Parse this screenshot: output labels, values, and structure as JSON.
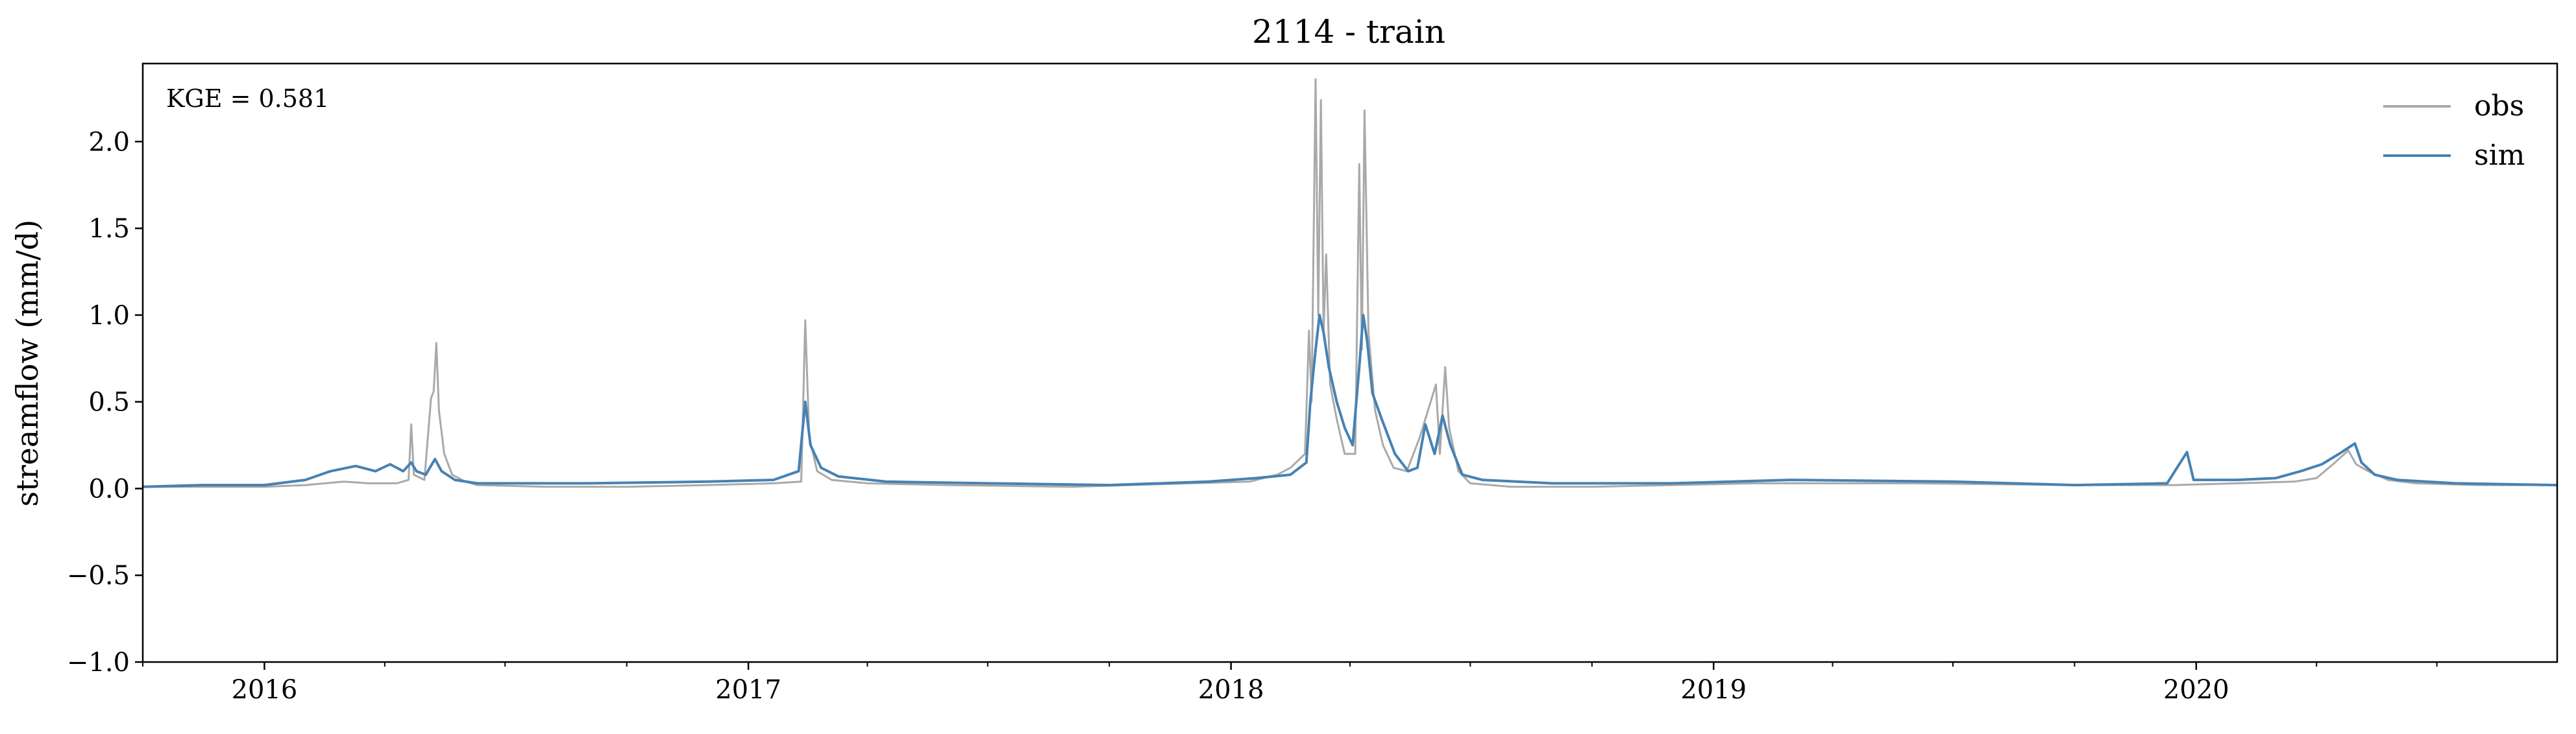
{
  "chart_data": {
    "type": "line",
    "title": "2114 - train",
    "xlabel": "",
    "ylabel": "streamflow (mm/d)",
    "annotation": "KGE = 0.581",
    "xlim": [
      "2015-10-01",
      "2020-09-30"
    ],
    "ylim": [
      -1.0,
      2.45
    ],
    "x_tick_labels": [
      "2016",
      "2017",
      "2018",
      "2019",
      "2020"
    ],
    "x_ticks": [
      "2016-01-01",
      "2017-01-01",
      "2018-01-01",
      "2019-01-01",
      "2020-01-01"
    ],
    "y_ticks": [
      -1.0,
      -0.5,
      0.0,
      0.5,
      1.0,
      1.5,
      2.0
    ],
    "y_tick_labels": [
      "−1.0",
      "−0.5",
      "0.0",
      "0.5",
      "1.0",
      "1.5",
      "2.0"
    ],
    "grid": false,
    "legend_position": "top-right",
    "colors": {
      "obs": "#a9a9a9",
      "sim": "#4682b4"
    },
    "series": [
      {
        "name": "obs",
        "points": [
          [
            "2015-10-01",
            0.01
          ],
          [
            "2015-11-15",
            0.01
          ],
          [
            "2016-01-01",
            0.01
          ],
          [
            "2016-02-01",
            0.02
          ],
          [
            "2016-03-01",
            0.04
          ],
          [
            "2016-03-20",
            0.03
          ],
          [
            "2016-04-10",
            0.03
          ],
          [
            "2016-04-19",
            0.05
          ],
          [
            "2016-04-21",
            0.37
          ],
          [
            "2016-04-23",
            0.08
          ],
          [
            "2016-05-01",
            0.05
          ],
          [
            "2016-05-06",
            0.52
          ],
          [
            "2016-05-08",
            0.56
          ],
          [
            "2016-05-10",
            0.84
          ],
          [
            "2016-05-12",
            0.45
          ],
          [
            "2016-05-16",
            0.2
          ],
          [
            "2016-05-22",
            0.08
          ],
          [
            "2016-06-01",
            0.04
          ],
          [
            "2016-06-10",
            0.02
          ],
          [
            "2016-08-01",
            0.01
          ],
          [
            "2016-10-01",
            0.01
          ],
          [
            "2016-12-01",
            0.02
          ],
          [
            "2017-01-20",
            0.03
          ],
          [
            "2017-02-10",
            0.04
          ],
          [
            "2017-02-13",
            0.97
          ],
          [
            "2017-02-16",
            0.3
          ],
          [
            "2017-02-22",
            0.1
          ],
          [
            "2017-03-05",
            0.05
          ],
          [
            "2017-04-01",
            0.03
          ],
          [
            "2017-06-01",
            0.02
          ],
          [
            "2017-09-01",
            0.01
          ],
          [
            "2017-12-01",
            0.03
          ],
          [
            "2018-01-15",
            0.04
          ],
          [
            "2018-02-05",
            0.08
          ],
          [
            "2018-02-15",
            0.12
          ],
          [
            "2018-02-26",
            0.2
          ],
          [
            "2018-03-01",
            0.91
          ],
          [
            "2018-03-03",
            0.5
          ],
          [
            "2018-03-06",
            2.36
          ],
          [
            "2018-03-08",
            1.0
          ],
          [
            "2018-03-10",
            2.24
          ],
          [
            "2018-03-12",
            0.9
          ],
          [
            "2018-03-14",
            1.35
          ],
          [
            "2018-03-17",
            0.6
          ],
          [
            "2018-03-22",
            0.4
          ],
          [
            "2018-03-28",
            0.2
          ],
          [
            "2018-04-05",
            0.2
          ],
          [
            "2018-04-08",
            1.87
          ],
          [
            "2018-04-10",
            0.8
          ],
          [
            "2018-04-12",
            2.18
          ],
          [
            "2018-04-15",
            0.9
          ],
          [
            "2018-04-20",
            0.45
          ],
          [
            "2018-04-26",
            0.25
          ],
          [
            "2018-05-04",
            0.12
          ],
          [
            "2018-05-14",
            0.1
          ],
          [
            "2018-05-24",
            0.3
          ],
          [
            "2018-06-05",
            0.6
          ],
          [
            "2018-06-08",
            0.2
          ],
          [
            "2018-06-12",
            0.7
          ],
          [
            "2018-06-15",
            0.35
          ],
          [
            "2018-06-22",
            0.1
          ],
          [
            "2018-07-01",
            0.03
          ],
          [
            "2018-08-01",
            0.01
          ],
          [
            "2018-10-01",
            0.01
          ],
          [
            "2019-02-01",
            0.03
          ],
          [
            "2019-06-01",
            0.03
          ],
          [
            "2019-10-01",
            0.02
          ],
          [
            "2019-12-15",
            0.02
          ],
          [
            "2020-02-01",
            0.03
          ],
          [
            "2020-03-15",
            0.04
          ],
          [
            "2020-04-01",
            0.06
          ],
          [
            "2020-04-15",
            0.15
          ],
          [
            "2020-04-25",
            0.22
          ],
          [
            "2020-05-01",
            0.14
          ],
          [
            "2020-05-10",
            0.1
          ],
          [
            "2020-05-25",
            0.05
          ],
          [
            "2020-06-15",
            0.03
          ],
          [
            "2020-08-01",
            0.02
          ],
          [
            "2020-09-30",
            0.02
          ]
        ]
      },
      {
        "name": "sim",
        "points": [
          [
            "2015-10-01",
            0.01
          ],
          [
            "2015-11-15",
            0.02
          ],
          [
            "2016-01-01",
            0.02
          ],
          [
            "2016-02-01",
            0.05
          ],
          [
            "2016-02-20",
            0.1
          ],
          [
            "2016-03-10",
            0.13
          ],
          [
            "2016-03-25",
            0.1
          ],
          [
            "2016-04-05",
            0.14
          ],
          [
            "2016-04-15",
            0.1
          ],
          [
            "2016-04-21",
            0.15
          ],
          [
            "2016-04-25",
            0.1
          ],
          [
            "2016-05-02",
            0.08
          ],
          [
            "2016-05-09",
            0.17
          ],
          [
            "2016-05-14",
            0.1
          ],
          [
            "2016-05-24",
            0.05
          ],
          [
            "2016-06-10",
            0.03
          ],
          [
            "2016-09-01",
            0.03
          ],
          [
            "2016-12-01",
            0.04
          ],
          [
            "2017-01-20",
            0.05
          ],
          [
            "2017-02-08",
            0.1
          ],
          [
            "2017-02-13",
            0.5
          ],
          [
            "2017-02-17",
            0.25
          ],
          [
            "2017-02-25",
            0.12
          ],
          [
            "2017-03-10",
            0.07
          ],
          [
            "2017-04-15",
            0.04
          ],
          [
            "2017-07-01",
            0.03
          ],
          [
            "2017-10-01",
            0.02
          ],
          [
            "2017-12-15",
            0.04
          ],
          [
            "2018-01-20",
            0.06
          ],
          [
            "2018-02-15",
            0.08
          ],
          [
            "2018-02-27",
            0.15
          ],
          [
            "2018-03-02",
            0.5
          ],
          [
            "2018-03-06",
            0.8
          ],
          [
            "2018-03-09",
            1.0
          ],
          [
            "2018-03-12",
            0.9
          ],
          [
            "2018-03-16",
            0.7
          ],
          [
            "2018-03-22",
            0.5
          ],
          [
            "2018-03-28",
            0.35
          ],
          [
            "2018-04-03",
            0.25
          ],
          [
            "2018-04-08",
            0.7
          ],
          [
            "2018-04-11",
            1.0
          ],
          [
            "2018-04-14",
            0.85
          ],
          [
            "2018-04-18",
            0.55
          ],
          [
            "2018-04-25",
            0.4
          ],
          [
            "2018-05-05",
            0.2
          ],
          [
            "2018-05-15",
            0.1
          ],
          [
            "2018-05-22",
            0.12
          ],
          [
            "2018-05-28",
            0.37
          ],
          [
            "2018-06-04",
            0.2
          ],
          [
            "2018-06-10",
            0.42
          ],
          [
            "2018-06-16",
            0.25
          ],
          [
            "2018-06-25",
            0.08
          ],
          [
            "2018-07-10",
            0.05
          ],
          [
            "2018-09-01",
            0.03
          ],
          [
            "2018-12-01",
            0.03
          ],
          [
            "2019-03-01",
            0.05
          ],
          [
            "2019-07-01",
            0.04
          ],
          [
            "2019-10-01",
            0.02
          ],
          [
            "2019-12-10",
            0.03
          ],
          [
            "2019-12-25",
            0.21
          ],
          [
            "2019-12-30",
            0.05
          ],
          [
            "2020-02-01",
            0.05
          ],
          [
            "2020-03-01",
            0.06
          ],
          [
            "2020-03-20",
            0.1
          ],
          [
            "2020-04-05",
            0.14
          ],
          [
            "2020-04-18",
            0.2
          ],
          [
            "2020-04-30",
            0.26
          ],
          [
            "2020-05-05",
            0.15
          ],
          [
            "2020-05-15",
            0.08
          ],
          [
            "2020-06-01",
            0.05
          ],
          [
            "2020-07-15",
            0.03
          ],
          [
            "2020-09-30",
            0.02
          ]
        ]
      }
    ]
  }
}
